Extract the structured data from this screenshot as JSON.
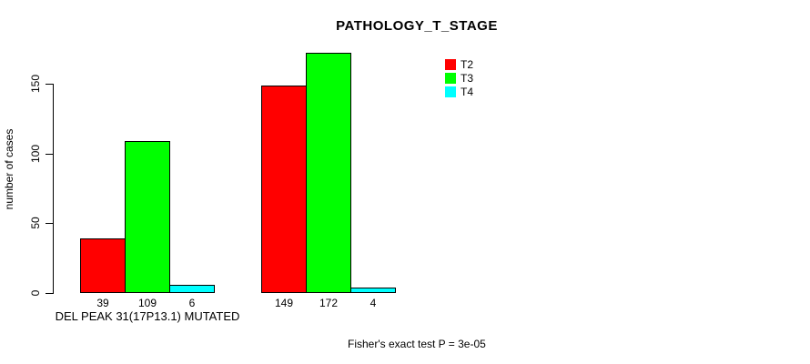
{
  "figure": {
    "background": "#ffffff",
    "text_color": "#000000",
    "bar_border_color": "#000000"
  },
  "chart_data": {
    "type": "bar",
    "title": "PATHOLOGY_T_STAGE",
    "ylabel": "number of cases",
    "xlabel": "",
    "categories": [
      "DEL PEAK 31(17P13.1) MUTATED",
      ""
    ],
    "series": [
      {
        "name": "T2",
        "color": "#ff0000",
        "values": [
          39,
          149
        ]
      },
      {
        "name": "T3",
        "color": "#00ff00",
        "values": [
          109,
          172
        ]
      },
      {
        "name": "T4",
        "color": "#00ffff",
        "values": [
          6,
          4
        ]
      }
    ],
    "yticks": [
      0,
      50,
      100,
      150
    ],
    "ylim": [
      0,
      172
    ],
    "grid": false,
    "legend_position": "top-right",
    "footnote": "Fisher's exact test P = 3e-05"
  }
}
